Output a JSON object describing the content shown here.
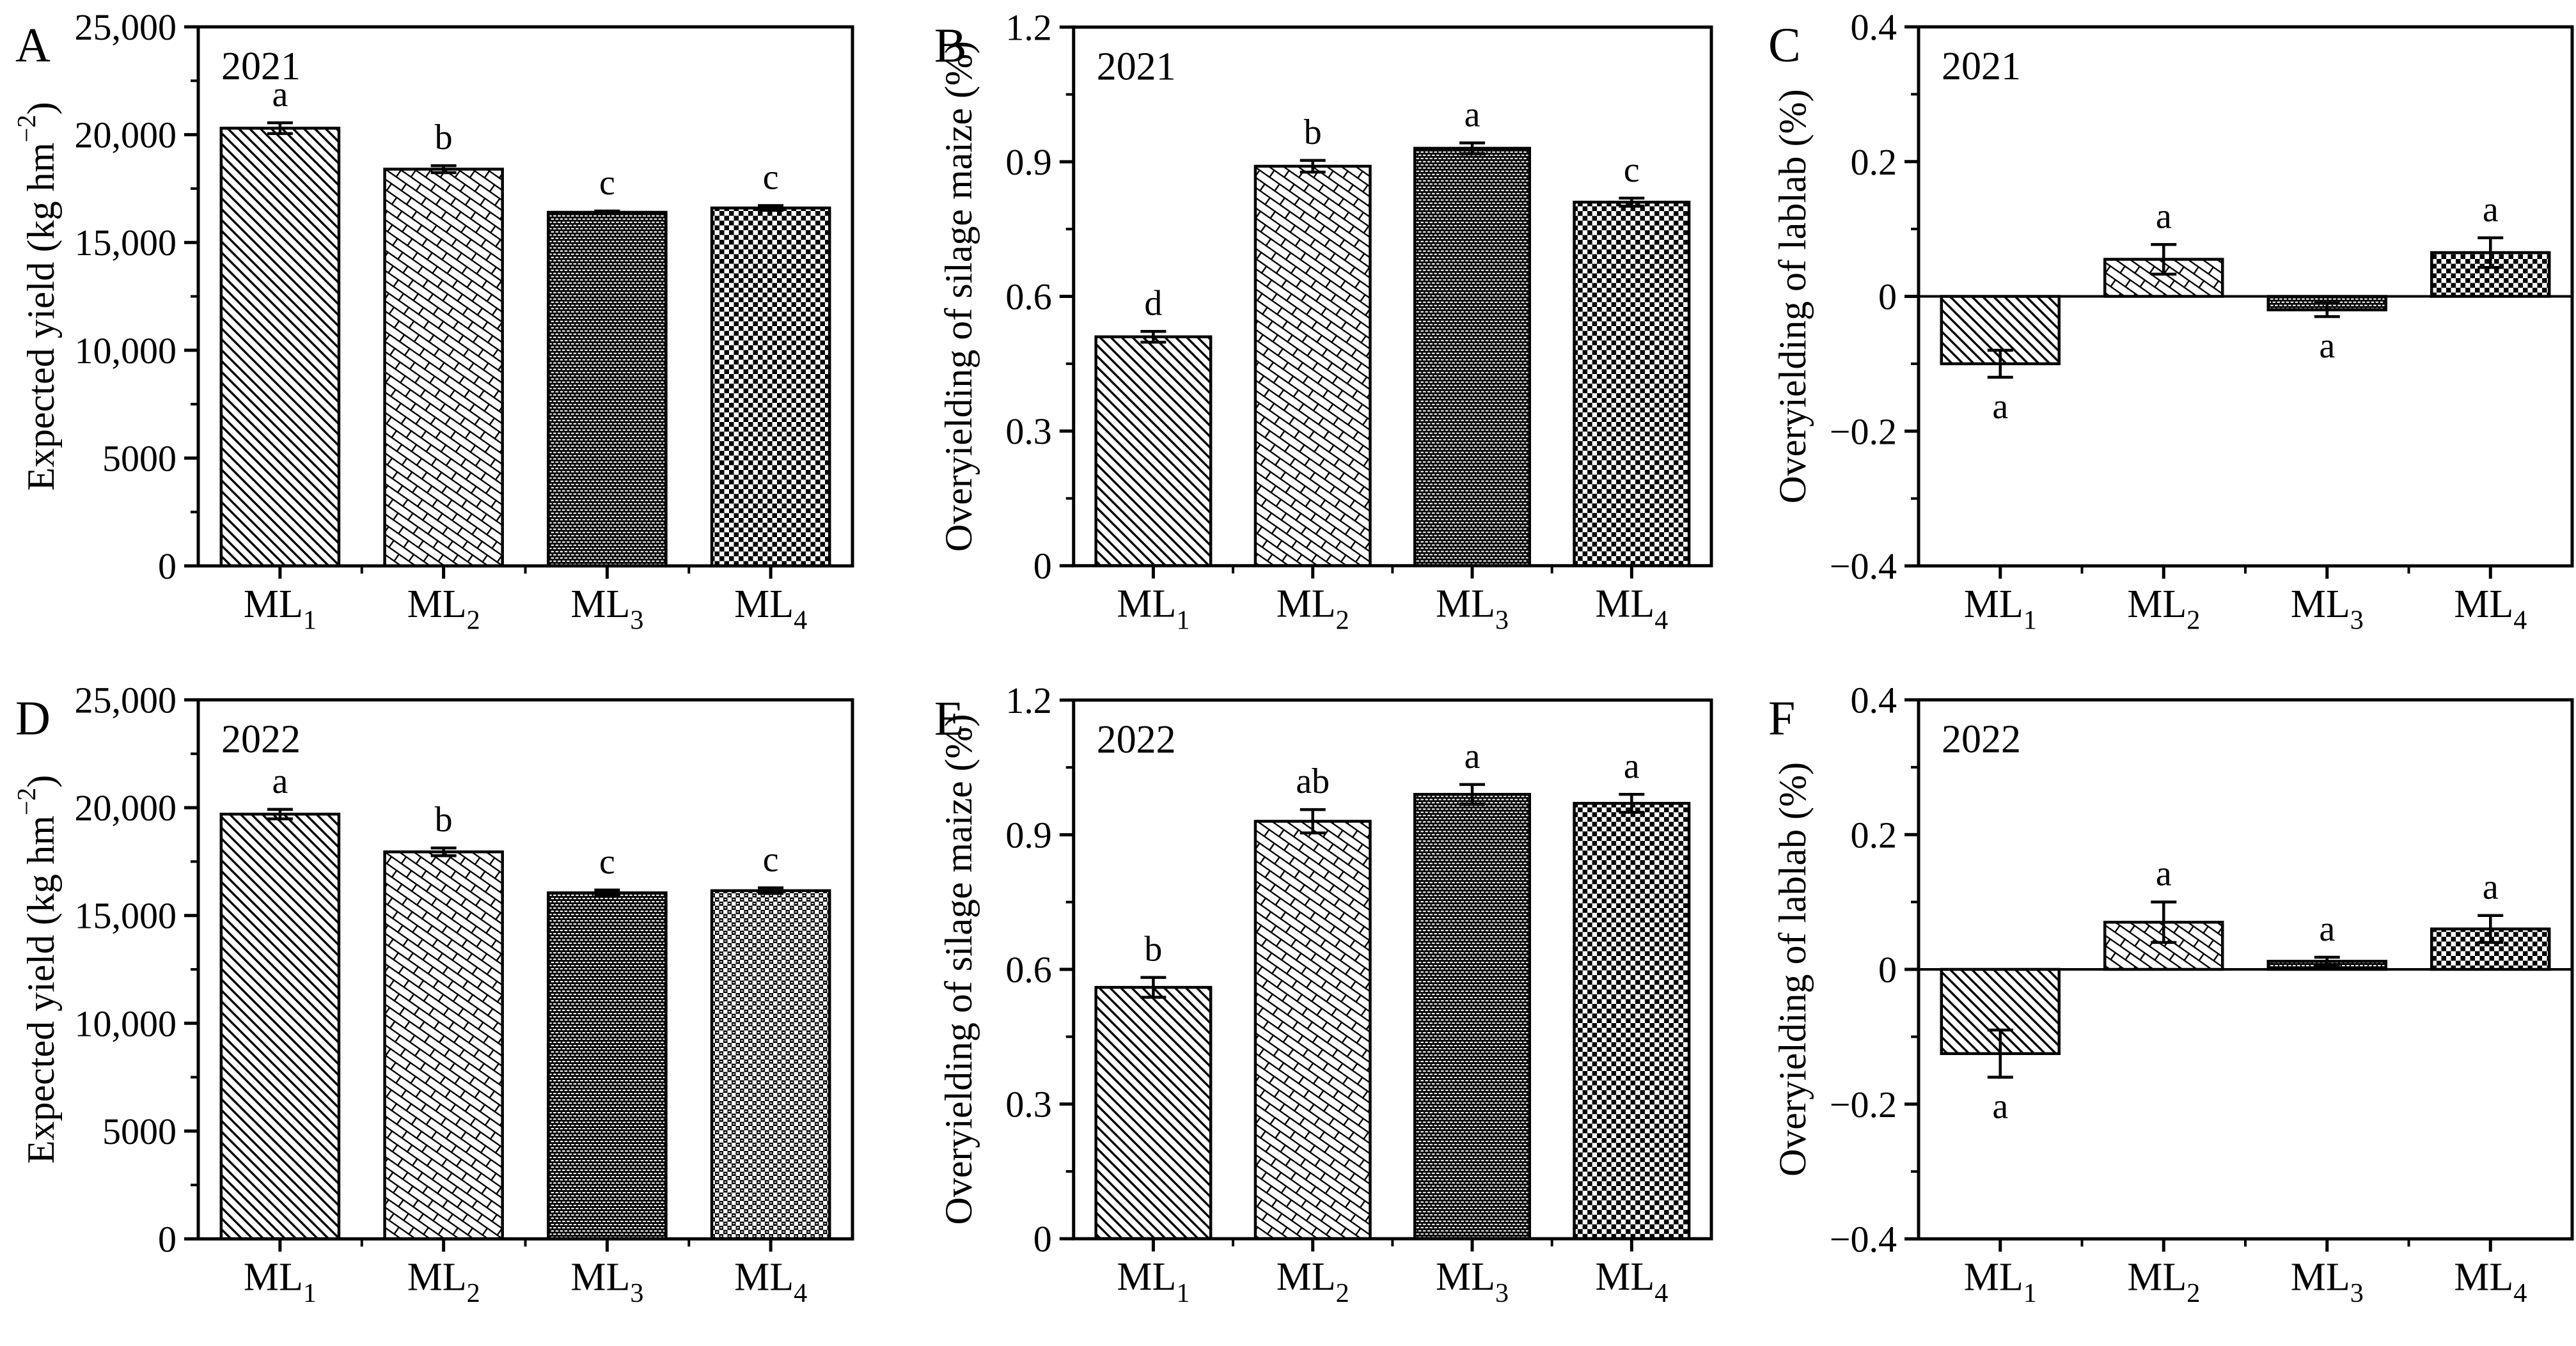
{
  "figure": {
    "background": "#ffffff",
    "ink": "#000000",
    "treatments": [
      "ML₁",
      "ML₂",
      "ML₃",
      "ML₄"
    ],
    "pattern_legend": {
      "diag": "black diagonal hatch lines",
      "weave": "diagonal brick weave outline",
      "ddash": "black fill with white dash grid",
      "checker": "black-white checkerboard",
      "checker2": "dense checkerboard with white dashes"
    }
  },
  "chart_data": [
    {
      "type": "bar",
      "panel_label": "A",
      "year": "2021",
      "ylabel": "Expected yield (kg hm⁻²)",
      "xlabel": "",
      "ylim": [
        0,
        25000
      ],
      "yminor": 2500,
      "grid": false,
      "yticks": [
        {
          "v": 0,
          "label": "0"
        },
        {
          "v": 5000,
          "label": "5000"
        },
        {
          "v": 10000,
          "label": "10,000"
        },
        {
          "v": 15000,
          "label": "15,000"
        },
        {
          "v": 20000,
          "label": "20,000"
        },
        {
          "v": 25000,
          "label": "25,000"
        }
      ],
      "categories": [
        "ML₁",
        "ML₂",
        "ML₃",
        "ML₄"
      ],
      "values": [
        20300,
        18400,
        16400,
        16600
      ],
      "errors": [
        250,
        160,
        60,
        110
      ],
      "sig_letters": [
        "a",
        "b",
        "c",
        "c"
      ],
      "bar_patterns": [
        "diag",
        "weave",
        "ddash",
        "checker"
      ]
    },
    {
      "type": "bar",
      "panel_label": "B",
      "year": "2021",
      "ylabel": "Overyielding of silage maize (%)",
      "xlabel": "",
      "ylim": [
        0,
        1.2
      ],
      "yminor": 0.15,
      "grid": false,
      "yticks": [
        {
          "v": 0,
          "label": "0"
        },
        {
          "v": 0.3,
          "label": "0.3"
        },
        {
          "v": 0.6,
          "label": "0.6"
        },
        {
          "v": 0.9,
          "label": "0.9"
        },
        {
          "v": 1.2,
          "label": "1.2"
        }
      ],
      "categories": [
        "ML₁",
        "ML₂",
        "ML₃",
        "ML₄"
      ],
      "values": [
        0.51,
        0.89,
        0.93,
        0.81
      ],
      "errors": [
        0.012,
        0.013,
        0.012,
        0.009
      ],
      "sig_letters": [
        "d",
        "b",
        "a",
        "c"
      ],
      "bar_patterns": [
        "diag",
        "weave",
        "ddash",
        "checker"
      ]
    },
    {
      "type": "bar",
      "panel_label": "C",
      "year": "2021",
      "ylabel": "Overyielding of lablab (%)",
      "xlabel": "",
      "ylim": [
        -0.4,
        0.4
      ],
      "yminor": 0.1,
      "grid": false,
      "yticks": [
        {
          "v": -0.4,
          "label": "−0.4"
        },
        {
          "v": -0.2,
          "label": "−0.2"
        },
        {
          "v": 0,
          "label": "0"
        },
        {
          "v": 0.2,
          "label": "0.2"
        },
        {
          "v": 0.4,
          "label": "0.4"
        }
      ],
      "categories": [
        "ML₁",
        "ML₂",
        "ML₃",
        "ML₄"
      ],
      "values": [
        -0.1,
        0.055,
        -0.02,
        0.065
      ],
      "errors": [
        0.02,
        0.022,
        0.01,
        0.022
      ],
      "sig_letters": [
        "a",
        "a",
        "a",
        "a"
      ],
      "bar_patterns": [
        "diag",
        "weave",
        "ddash",
        "checker"
      ]
    },
    {
      "type": "bar",
      "panel_label": "D",
      "year": "2022",
      "ylabel": "Expected yield (kg hm⁻²)",
      "xlabel": "",
      "ylim": [
        0,
        25000
      ],
      "yminor": 2500,
      "grid": false,
      "yticks": [
        {
          "v": 0,
          "label": "0"
        },
        {
          "v": 5000,
          "label": "5000"
        },
        {
          "v": 10000,
          "label": "10,000"
        },
        {
          "v": 15000,
          "label": "15,000"
        },
        {
          "v": 20000,
          "label": "20,000"
        },
        {
          "v": 25000,
          "label": "25,000"
        }
      ],
      "categories": [
        "ML₁",
        "ML₂",
        "ML₃",
        "ML₄"
      ],
      "values": [
        19700,
        17950,
        16050,
        16150
      ],
      "errors": [
        220,
        180,
        130,
        130
      ],
      "sig_letters": [
        "a",
        "b",
        "c",
        "c"
      ],
      "bar_patterns": [
        "diag",
        "weave",
        "ddash",
        "checker2"
      ]
    },
    {
      "type": "bar",
      "panel_label": "E",
      "year": "2022",
      "ylabel": "Overyielding of silage maize (%)",
      "xlabel": "",
      "ylim": [
        0,
        1.2
      ],
      "yminor": 0.15,
      "grid": false,
      "yticks": [
        {
          "v": 0,
          "label": "0"
        },
        {
          "v": 0.3,
          "label": "0.3"
        },
        {
          "v": 0.6,
          "label": "0.6"
        },
        {
          "v": 0.9,
          "label": "0.9"
        },
        {
          "v": 1.2,
          "label": "1.2"
        }
      ],
      "categories": [
        "ML₁",
        "ML₂",
        "ML₃",
        "ML₄"
      ],
      "values": [
        0.56,
        0.93,
        0.99,
        0.97
      ],
      "errors": [
        0.022,
        0.026,
        0.022,
        0.02
      ],
      "sig_letters": [
        "b",
        "ab",
        "a",
        "a"
      ],
      "bar_patterns": [
        "diag",
        "weave",
        "ddash",
        "checker"
      ]
    },
    {
      "type": "bar",
      "panel_label": "F",
      "year": "2022",
      "ylabel": "Overyielding of lablab (%)",
      "xlabel": "",
      "ylim": [
        -0.4,
        0.4
      ],
      "yminor": 0.1,
      "grid": false,
      "yticks": [
        {
          "v": -0.4,
          "label": "−0.4"
        },
        {
          "v": -0.2,
          "label": "−0.2"
        },
        {
          "v": 0,
          "label": "0"
        },
        {
          "v": 0.2,
          "label": "0.2"
        },
        {
          "v": 0.4,
          "label": "0.4"
        }
      ],
      "categories": [
        "ML₁",
        "ML₂",
        "ML₃",
        "ML₄"
      ],
      "values": [
        -0.125,
        0.07,
        0.012,
        0.06
      ],
      "errors": [
        0.035,
        0.03,
        0.006,
        0.02
      ],
      "sig_letters": [
        "a",
        "a",
        "a",
        "a"
      ],
      "bar_patterns": [
        "diag",
        "weave",
        "ddash",
        "checker"
      ]
    }
  ]
}
